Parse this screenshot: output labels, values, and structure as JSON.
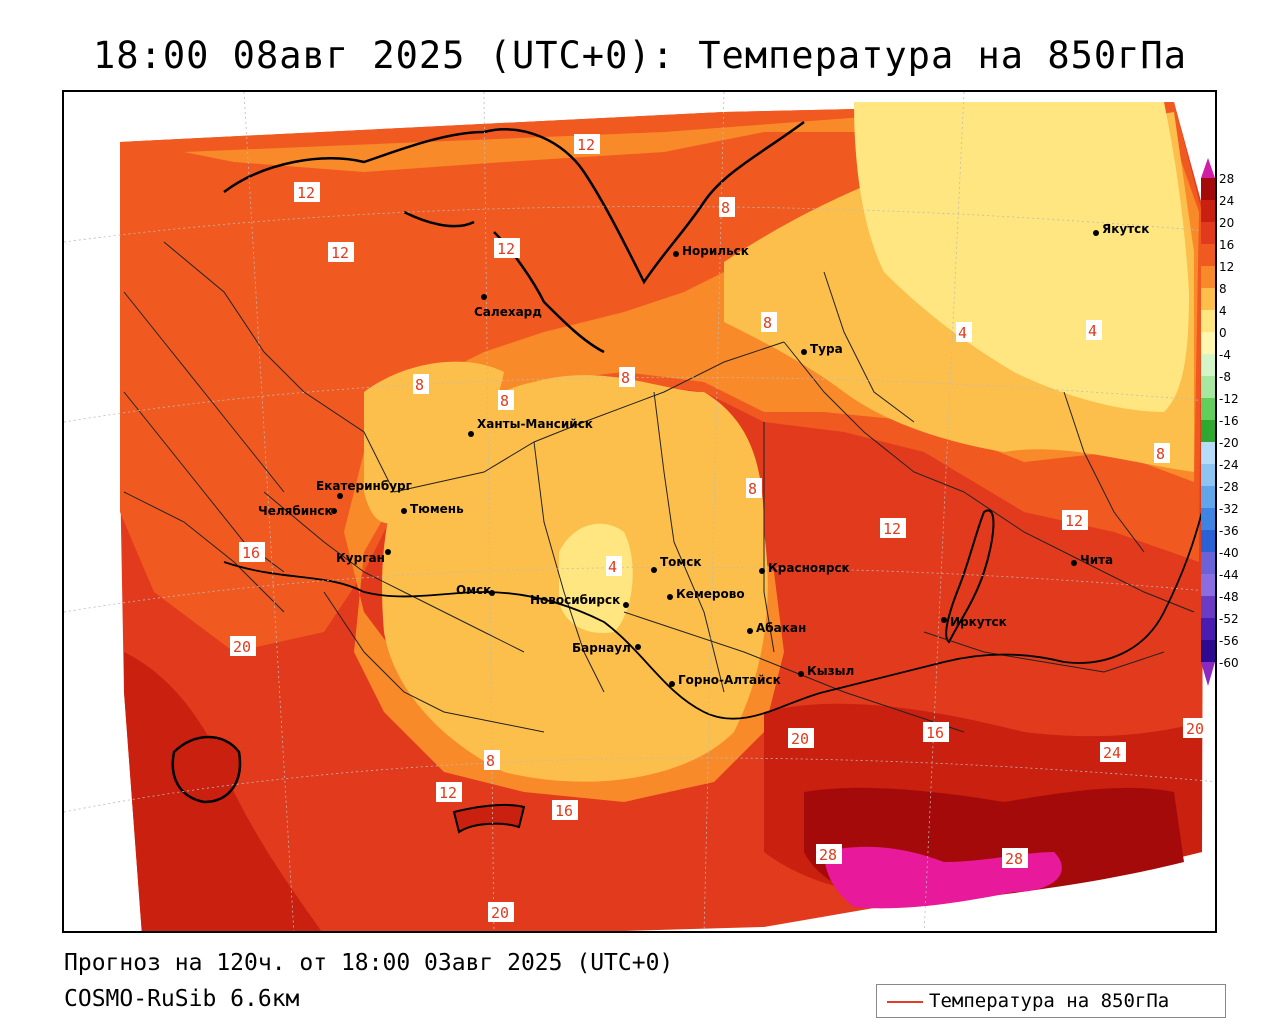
{
  "title": "18:00 08авг 2025 (UTC+0): Температура на 850гПа",
  "forecast_line": "Прогноз на 120ч. от 18:00 03авг 2025 (UTC+0)",
  "model_line": "COSMO-RuSib 6.6км",
  "legend_label": "Температура на 850гПа",
  "colors": {
    "c_0_4": "#ffe680",
    "c_4_8": "#fcbf4c",
    "c_8_12": "#f98a2a",
    "c_12_16": "#f05a20",
    "c_16_20": "#e23a1c",
    "c_20_24": "#c9200f",
    "c_24_28": "#a50a0a",
    "c_28": "#e8199a",
    "contour": "#ff4040"
  },
  "scale_labels": [
    "28",
    "24",
    "20",
    "16",
    "12",
    "8",
    "4",
    "0",
    "-4",
    "-8",
    "-12",
    "-16",
    "-20",
    "-24",
    "-28",
    "-32",
    "-36",
    "-40",
    "-44",
    "-48",
    "-52",
    "-56",
    "-60"
  ],
  "cities": [
    {
      "name": "Якутск"
    },
    {
      "name": "Норильск"
    },
    {
      "name": "Салехард"
    },
    {
      "name": "Тура"
    },
    {
      "name": "Ханты-Мансийск"
    },
    {
      "name": "Екатеринбург"
    },
    {
      "name": "Тюмень"
    },
    {
      "name": "Челябинск"
    },
    {
      "name": "Курган"
    },
    {
      "name": "Омск"
    },
    {
      "name": "Томск"
    },
    {
      "name": "Новосибирск"
    },
    {
      "name": "Кемерово"
    },
    {
      "name": "Красноярск"
    },
    {
      "name": "Абакан"
    },
    {
      "name": "Барнаул"
    },
    {
      "name": "Горно-Алтайск"
    },
    {
      "name": "Кызыл"
    },
    {
      "name": "Иркутск"
    },
    {
      "name": "Чита"
    }
  ],
  "contour_labels": [
    "12",
    "12",
    "12",
    "12",
    "8",
    "8",
    "8",
    "8",
    "8",
    "8",
    "4",
    "4",
    "4",
    "8",
    "8",
    "12",
    "12",
    "16",
    "20",
    "20",
    "16",
    "24",
    "28",
    "28",
    "20",
    "12",
    "16",
    "20"
  ]
}
